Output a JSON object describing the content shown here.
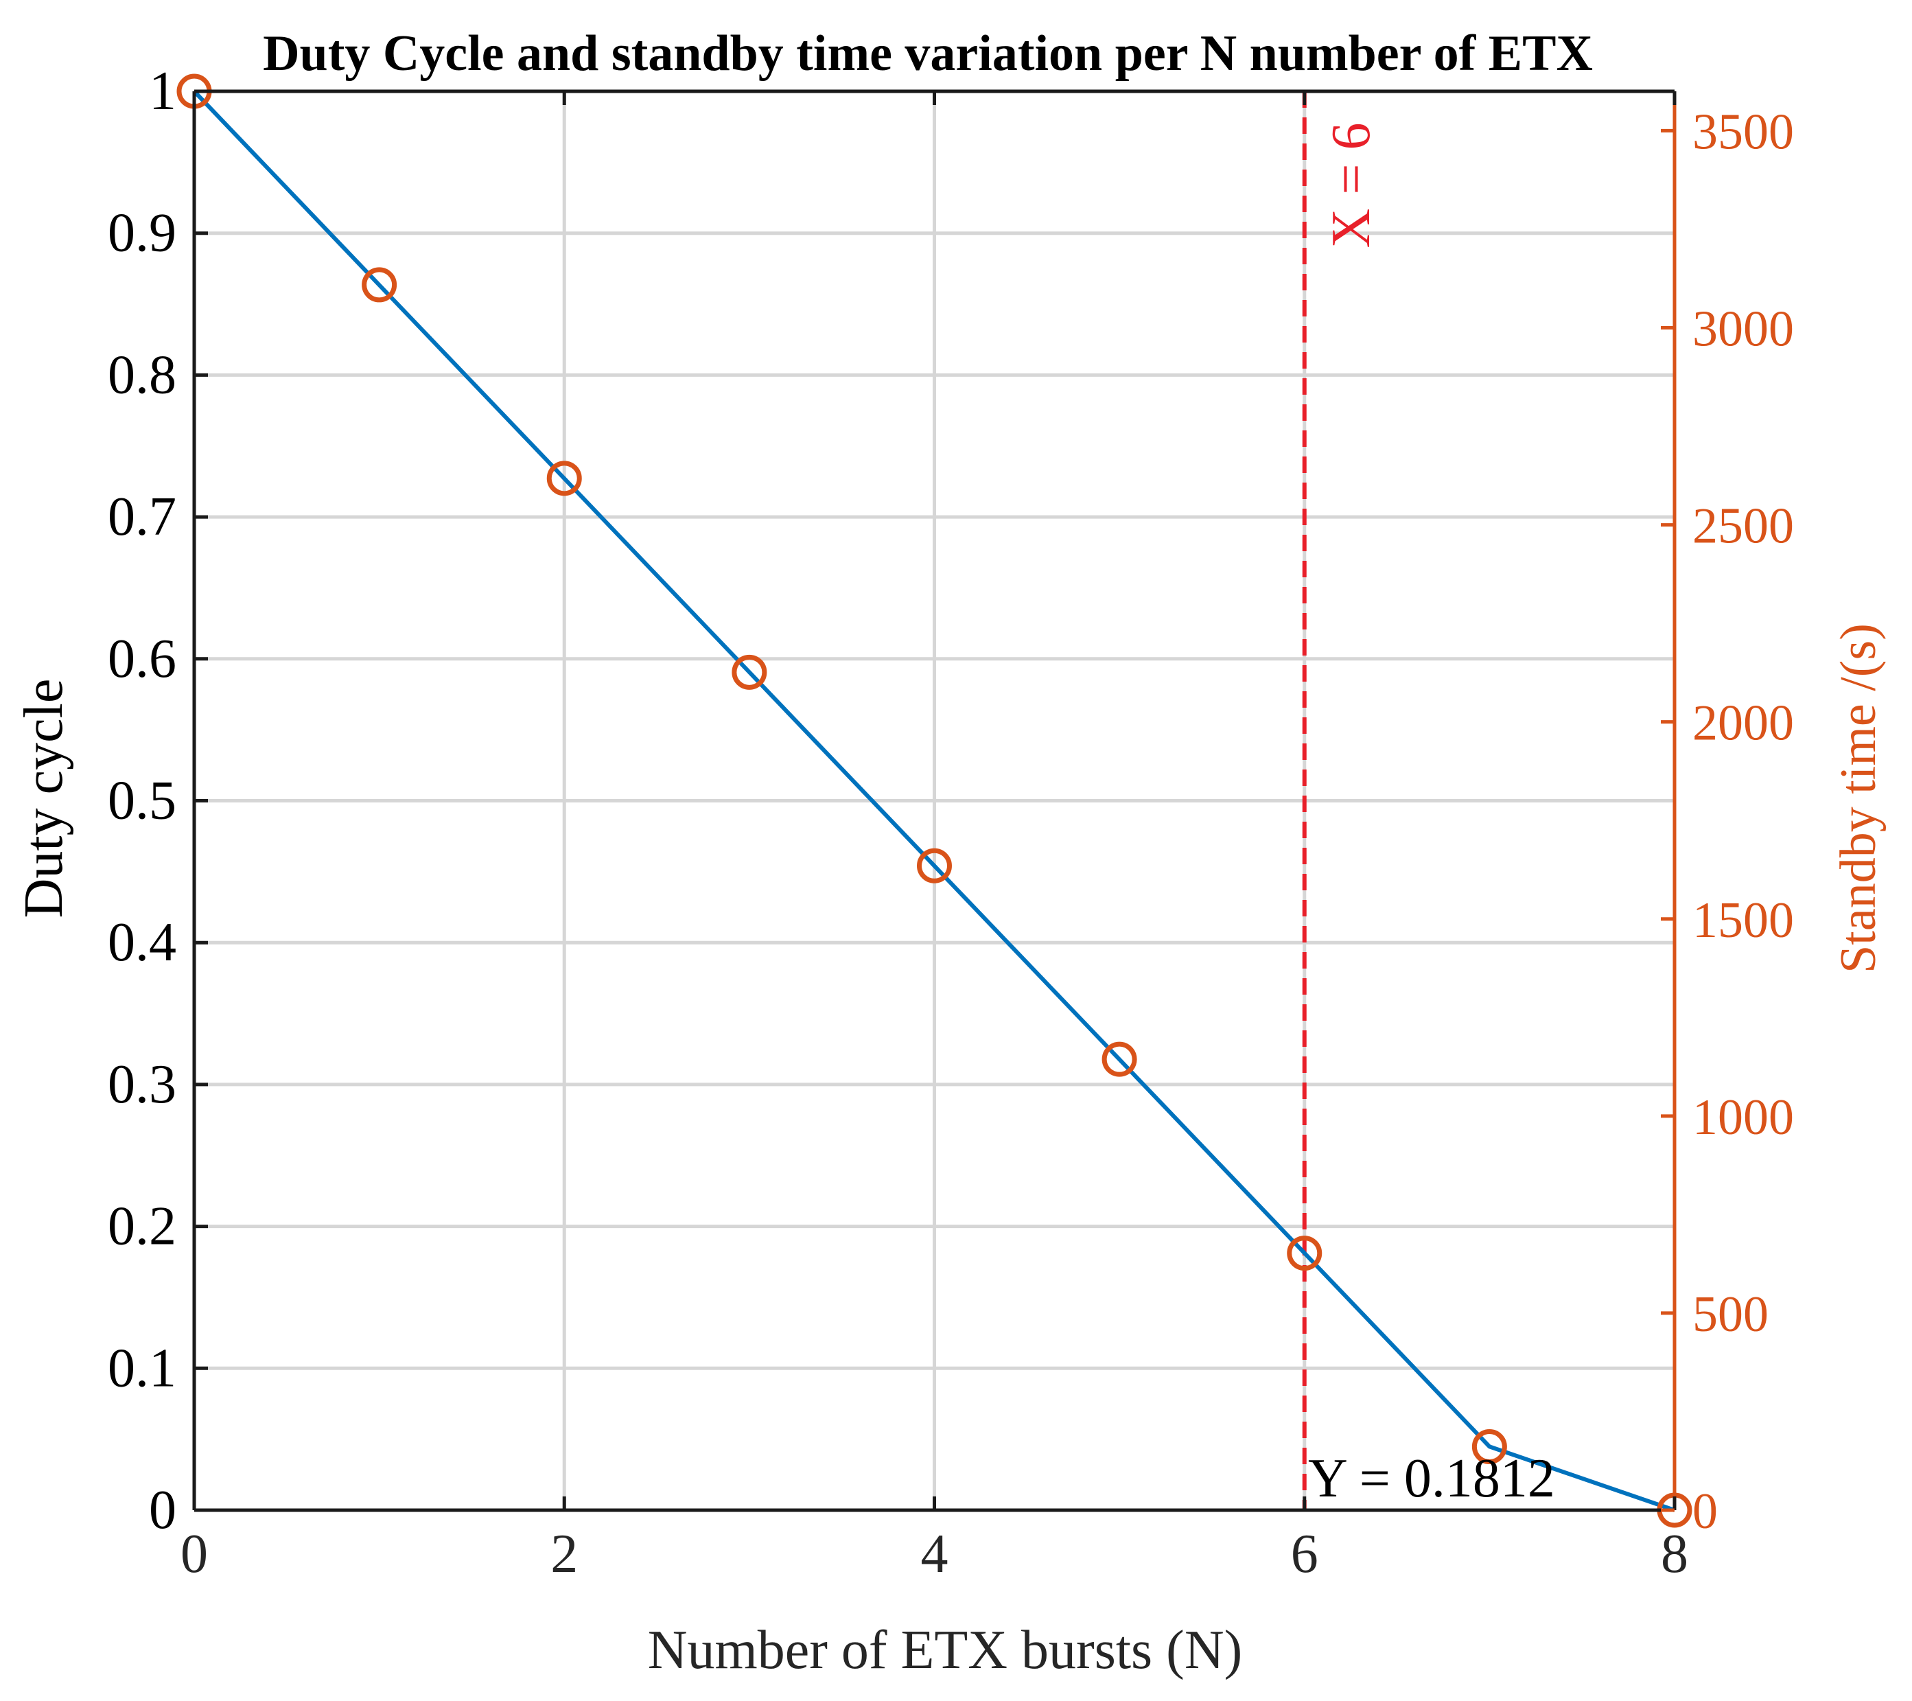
{
  "chart_data": {
    "type": "line",
    "title": "Duty Cycle and standby time variation per N number of ETX",
    "xlabel": "Number of ETX bursts (N)",
    "ylabel": "Duty cycle",
    "ylabel_right": "Standby time /(s)",
    "xlim": [
      0,
      8
    ],
    "ylim": [
      0,
      1
    ],
    "ylim_right": [
      0,
      3600
    ],
    "x_ticks": [
      "0",
      "2",
      "4",
      "6",
      "8"
    ],
    "y_ticks": [
      "0",
      "0.1",
      "0.2",
      "0.3",
      "0.4",
      "0.5",
      "0.6",
      "0.7",
      "0.8",
      "0.9",
      "1"
    ],
    "y_right_ticks": [
      "0",
      "500",
      "1000",
      "1500",
      "2000",
      "2500",
      "3000",
      "3500"
    ],
    "grid": true,
    "series": [
      {
        "name": "Duty cycle",
        "axis": "left",
        "style": "line",
        "color": "#0072BD",
        "x": [
          0,
          1,
          2,
          3,
          4,
          5,
          6,
          7,
          8
        ],
        "values": [
          1.0,
          0.8635,
          0.7271,
          0.5906,
          0.4541,
          0.3177,
          0.1812,
          0.0448,
          0.0
        ]
      },
      {
        "name": "Standby time",
        "axis": "right",
        "style": "markers",
        "marker": "circle",
        "color": "#D95319",
        "x": [
          0,
          1,
          2,
          3,
          4,
          5,
          6,
          7,
          8
        ],
        "values": [
          3600,
          3109,
          2618,
          2126,
          1635,
          1144,
          652,
          161,
          0
        ]
      }
    ],
    "annotations": {
      "vline": {
        "x": 6,
        "label": "X = 6",
        "color": "#E8202A"
      },
      "point_label": {
        "x": 6,
        "text": "Y = 0.1812"
      }
    }
  },
  "colors": {
    "left_axis": "#1a1a1a",
    "right_axis": "#D95319",
    "grid": "#d6d6d6",
    "vline": "#E8202A"
  }
}
